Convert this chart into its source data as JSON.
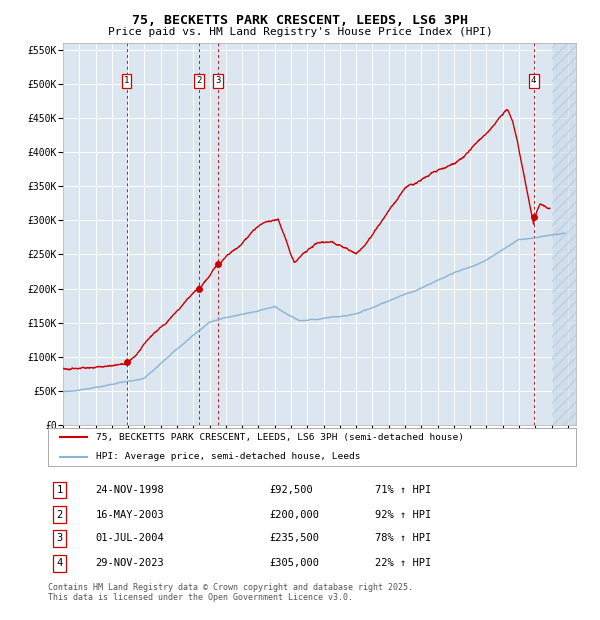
{
  "title": "75, BECKETTS PARK CRESCENT, LEEDS, LS6 3PH",
  "subtitle": "Price paid vs. HM Land Registry's House Price Index (HPI)",
  "title_fontsize": 9.5,
  "subtitle_fontsize": 8.0,
  "bg_color": "#dce6f0",
  "red_line_color": "#cc0000",
  "blue_line_color": "#8ab4d4",
  "sale_marker_color": "#cc0000",
  "vline_color": "#cc0000",
  "grid_color": "#ffffff",
  "ylim": [
    0,
    560000
  ],
  "yticks": [
    0,
    50000,
    100000,
    150000,
    200000,
    250000,
    300000,
    350000,
    400000,
    450000,
    500000,
    550000
  ],
  "ytick_labels": [
    "£0",
    "£50K",
    "£100K",
    "£150K",
    "£200K",
    "£250K",
    "£300K",
    "£350K",
    "£400K",
    "£450K",
    "£500K",
    "£550K"
  ],
  "xlim_start": 1995.0,
  "xlim_end": 2026.5,
  "xtick_years": [
    1995,
    1996,
    1997,
    1998,
    1999,
    2000,
    2001,
    2002,
    2003,
    2004,
    2005,
    2006,
    2007,
    2008,
    2009,
    2010,
    2011,
    2012,
    2013,
    2014,
    2015,
    2016,
    2017,
    2018,
    2019,
    2020,
    2021,
    2022,
    2023,
    2024,
    2025,
    2026
  ],
  "sales": [
    {
      "num": 1,
      "date": "24-NOV-1998",
      "year": 1998.9,
      "price": 92500,
      "hpi_pct": "71%",
      "label": "24-NOV-1998",
      "price_str": "£92,500"
    },
    {
      "num": 2,
      "date": "16-MAY-2003",
      "year": 2003.37,
      "price": 200000,
      "hpi_pct": "92%",
      "label": "16-MAY-2003",
      "price_str": "£200,000"
    },
    {
      "num": 3,
      "date": "01-JUL-2004",
      "year": 2004.5,
      "price": 235500,
      "hpi_pct": "78%",
      "label": "01-JUL-2004",
      "price_str": "£235,500"
    },
    {
      "num": 4,
      "date": "29-NOV-2023",
      "year": 2023.9,
      "price": 305000,
      "hpi_pct": "22%",
      "label": "29-NOV-2023",
      "price_str": "£305,000"
    }
  ],
  "legend_label_red": "75, BECKETTS PARK CRESCENT, LEEDS, LS6 3PH (semi-detached house)",
  "legend_label_blue": "HPI: Average price, semi-detached house, Leeds",
  "footer": "Contains HM Land Registry data © Crown copyright and database right 2025.\nThis data is licensed under the Open Government Licence v3.0.",
  "hatch_start": 2025.0
}
